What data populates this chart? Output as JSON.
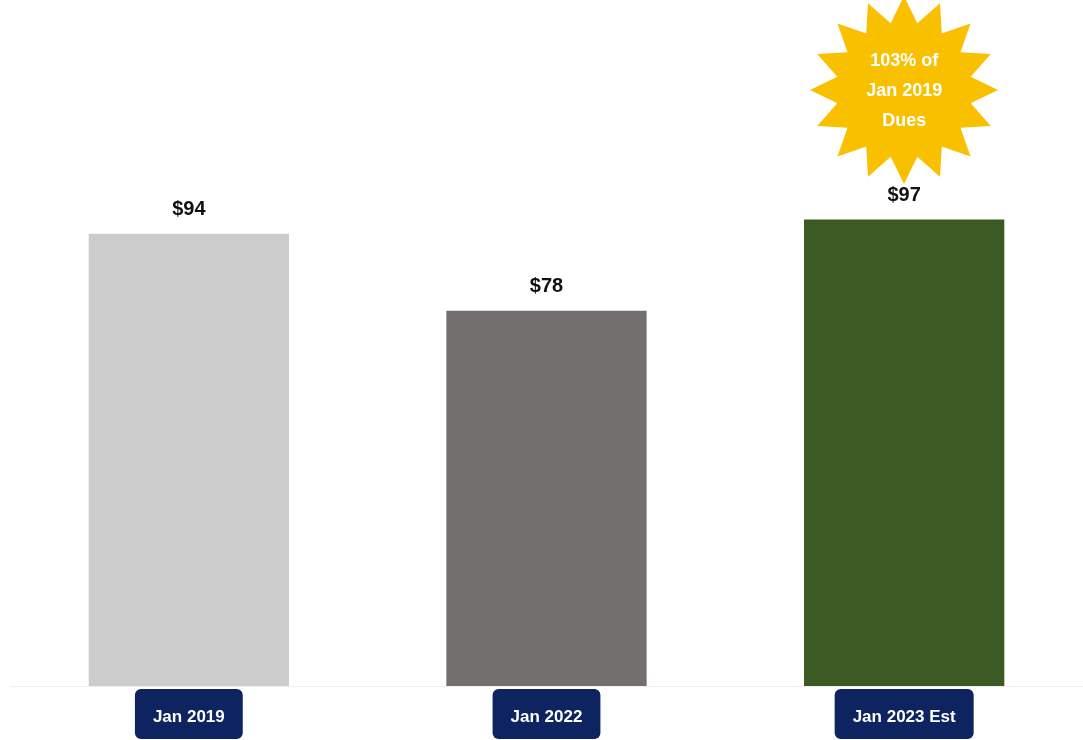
{
  "chart_data": {
    "type": "bar",
    "categories": [
      "Jan 2019",
      "Jan 2022",
      "Jan 2023 Est"
    ],
    "values": [
      94,
      78,
      97
    ],
    "colors": [
      "#cccccc",
      "#736f6e",
      "#3b5a24"
    ],
    "data_labels": true,
    "value_labels": [
      "$94",
      "$78",
      "$97"
    ],
    "annotations": [
      "103% of Jan 2019 Dues"
    ]
  }
}
